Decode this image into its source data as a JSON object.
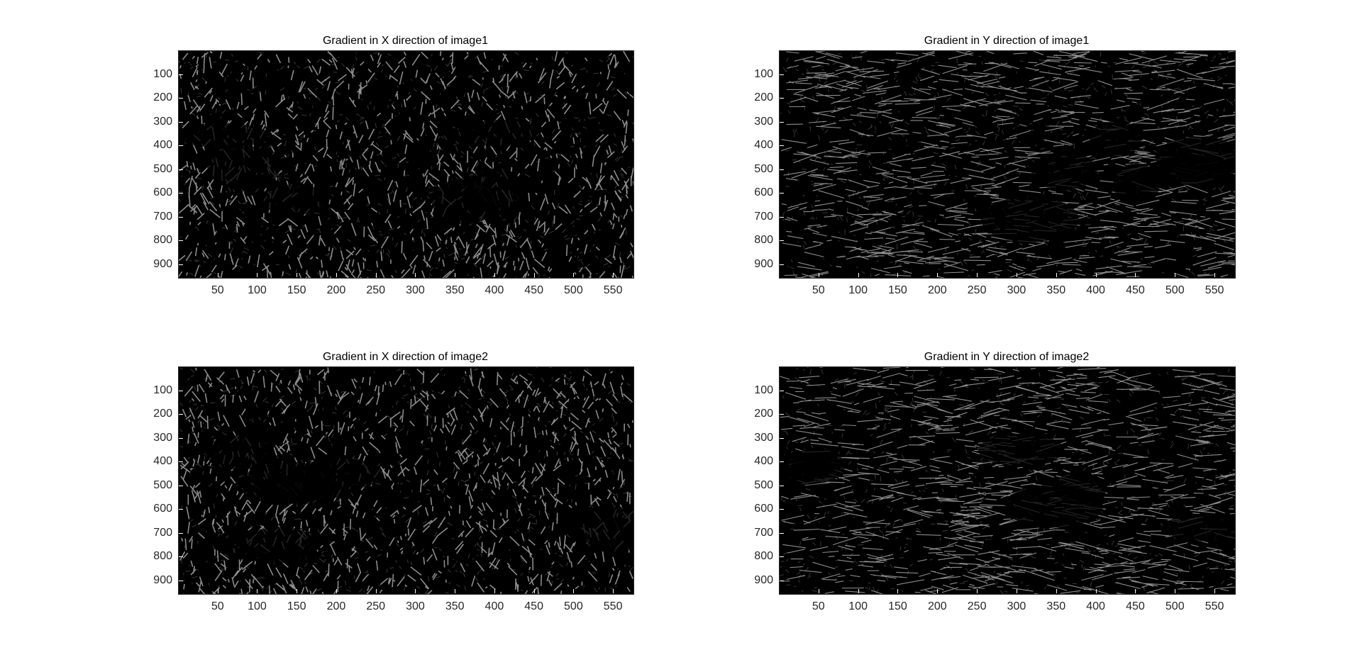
{
  "figure": {
    "background": "#ffffff",
    "image_background": "#000000",
    "edge_color": "#ffffff",
    "panels": [
      {
        "id": "p1",
        "title": "Gradient in X direction of image1",
        "direction": "x",
        "seed": 11
      },
      {
        "id": "p2",
        "title": "Gradient in Y direction of image1",
        "direction": "y",
        "seed": 23
      },
      {
        "id": "p3",
        "title": "Gradient in X direction of image2",
        "direction": "x",
        "seed": 37
      },
      {
        "id": "p4",
        "title": "Gradient in Y direction of image2",
        "direction": "y",
        "seed": 51
      }
    ],
    "axes": {
      "xlim": [
        0,
        575
      ],
      "ylim": [
        0,
        955
      ],
      "y_reversed": true,
      "xticks": [
        "50",
        "100",
        "150",
        "200",
        "250",
        "300",
        "350",
        "400",
        "450",
        "500",
        "550"
      ],
      "xtick_values": [
        50,
        100,
        150,
        200,
        250,
        300,
        350,
        400,
        450,
        500,
        550
      ],
      "yticks": [
        "100",
        "200",
        "300",
        "400",
        "500",
        "600",
        "700",
        "800",
        "900"
      ],
      "ytick_values": [
        100,
        200,
        300,
        400,
        500,
        600,
        700,
        800,
        900
      ]
    }
  }
}
